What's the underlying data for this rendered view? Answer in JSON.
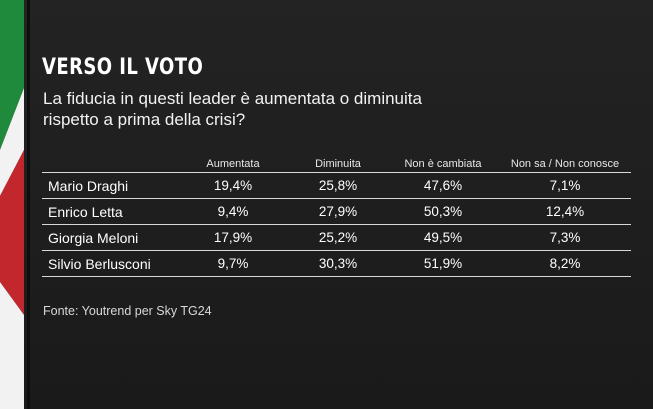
{
  "header": {
    "title": "VERSO IL VOTO",
    "subtitle_lines": [
      "La fiducia in questi leader è aumentata o diminuita",
      "rispetto a prima della crisi?"
    ]
  },
  "chart_data": {
    "type": "table",
    "columns": [
      "",
      "Aumentata",
      "Diminuita",
      "Non è cambiata",
      "Non sa / Non conosce"
    ],
    "rows": [
      {
        "name": "Mario Draghi",
        "values": [
          "19,4%",
          "25,8%",
          "47,6%",
          "7,1%"
        ]
      },
      {
        "name": "Enrico Letta",
        "values": [
          "9,4%",
          "27,9%",
          "50,3%",
          "12,4%"
        ]
      },
      {
        "name": "Giorgia Meloni",
        "values": [
          "17,9%",
          "25,2%",
          "49,5%",
          "7,3%"
        ]
      },
      {
        "name": "Silvio Berlusconi",
        "values": [
          "9,7%",
          "30,3%",
          "51,9%",
          "8,2%"
        ]
      }
    ]
  },
  "footer": {
    "source": "Fonte: Youtrend per Sky TG24"
  },
  "colors": {
    "flag_green": "#1f8a3c",
    "flag_white": "#f2f2f2",
    "flag_red": "#c1272d",
    "background": "#1c1c1c"
  }
}
